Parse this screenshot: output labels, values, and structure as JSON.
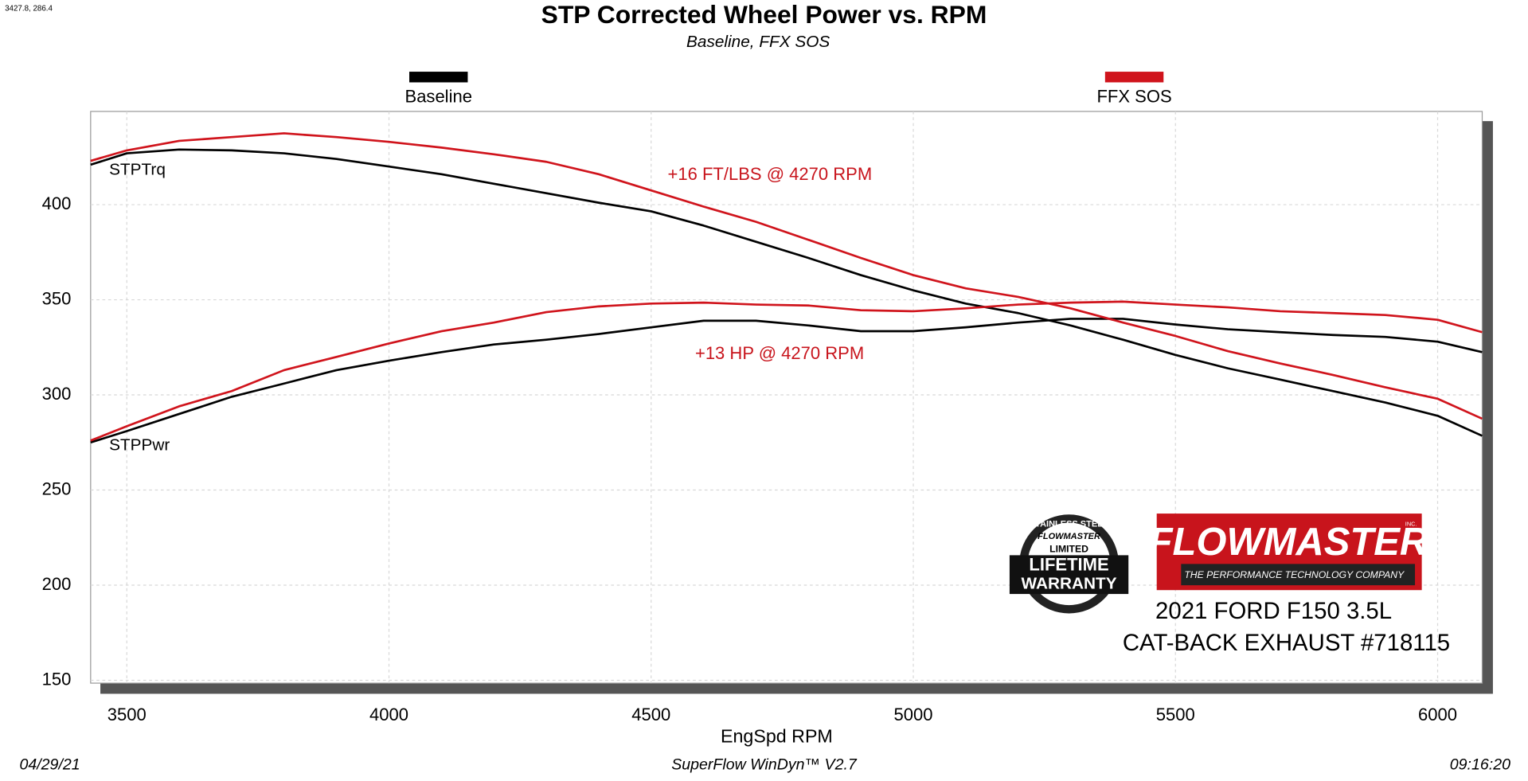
{
  "chart_data": {
    "type": "line",
    "title": "STP Corrected Wheel Power vs. RPM",
    "subtitle": "Baseline, FFX SOS",
    "corner_readout": "3427.8, 286.4",
    "x_label": "EngSpd  RPM",
    "footer": {
      "date": "04/29/21",
      "software": "SuperFlow WinDyn™ V2.7",
      "time": "09:16:20"
    },
    "curve_labels": {
      "torque": "STPTrq",
      "power": "STPPwr"
    },
    "annotations": [
      "+16 FT/LBS @ 4270 RPM",
      "+13 HP @ 4270 RPM"
    ],
    "logo": {
      "brand": "FLOWMASTER",
      "inc": "INC.",
      "tagline": "THE PERFORMANCE TECHNOLOGY COMPANY"
    },
    "warranty": [
      "STAINLESS STEEL",
      "FLOWMASTER",
      "LIMITED",
      "LIFETIME",
      "WARRANTY"
    ],
    "product": [
      "2021 FORD F150 3.5L",
      "CAT-BACK EXHAUST #718115"
    ],
    "x": [
      3431,
      3500,
      3600,
      3700,
      3800,
      3900,
      4000,
      4100,
      4200,
      4300,
      4400,
      4500,
      4600,
      4700,
      4800,
      4900,
      5000,
      5100,
      5200,
      5300,
      5400,
      5500,
      5600,
      5700,
      5800,
      5900,
      6000,
      6085
    ],
    "series": [
      {
        "name": "Baseline",
        "color": "#000000",
        "torque": [
          421,
          427,
          429,
          428.5,
          427,
          424,
          420,
          416,
          411,
          406,
          401,
          396.5,
          389,
          380.5,
          372,
          363,
          355,
          348,
          343,
          336.5,
          329,
          321,
          314,
          308,
          302,
          296,
          289,
          278.5
        ],
        "power": [
          275,
          281,
          290,
          299,
          306,
          313,
          318,
          322.5,
          326.5,
          329,
          332,
          335.5,
          339,
          339,
          336.5,
          333.5,
          333.5,
          335.5,
          338,
          340,
          340,
          337,
          334.5,
          333,
          331.5,
          330.5,
          328,
          322.5
        ]
      },
      {
        "name": "FFX SOS",
        "color": "#d0141c",
        "torque": [
          423,
          428.5,
          433.5,
          435.5,
          437.5,
          435.5,
          433,
          430,
          426.5,
          422.5,
          416,
          407.5,
          399,
          391,
          381.5,
          372,
          363,
          356,
          351.5,
          345.5,
          338,
          331,
          323,
          316.5,
          310.5,
          304,
          298,
          287.5
        ],
        "power": [
          276,
          283.5,
          294,
          302,
          313,
          320,
          327,
          333.5,
          338,
          343.5,
          346.5,
          348,
          348.5,
          347.5,
          347,
          344.5,
          344,
          345.5,
          347.5,
          348.5,
          349,
          347.5,
          346,
          344,
          343,
          342,
          339.5,
          333
        ]
      }
    ],
    "xlim": [
      3431,
      6085
    ],
    "xticks": [
      3500,
      4000,
      4500,
      5000,
      5500,
      6000
    ],
    "ylim": [
      148.5,
      449
    ],
    "yticks": [
      150,
      200,
      250,
      300,
      350,
      400
    ],
    "grid": true
  }
}
